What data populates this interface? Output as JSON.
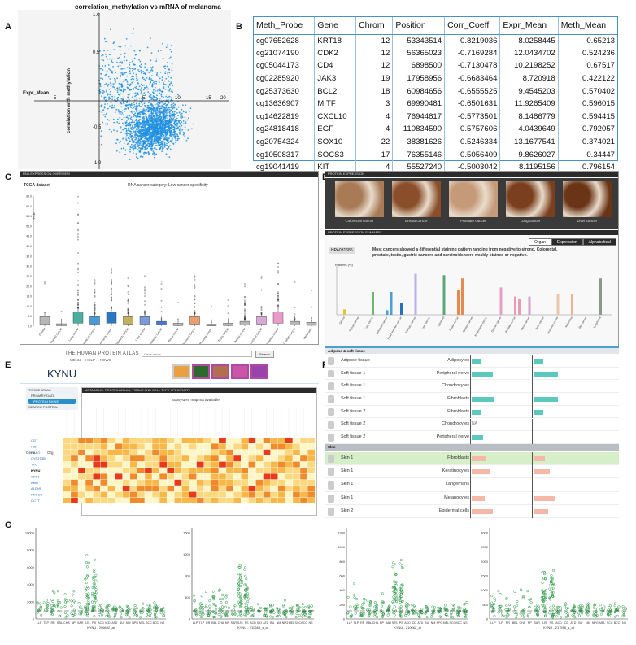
{
  "labels": {
    "A": "A",
    "B": "B",
    "C": "C",
    "D": "D",
    "E": "E",
    "F": "F",
    "G": "G"
  },
  "panelA": {
    "title": "correlation_methylation vs mRNA of melanoma",
    "xlabel": "Expr_Mean",
    "ylabel": "correlation with methylation",
    "xticks": [
      "-5",
      "5",
      "10",
      "15",
      "20"
    ],
    "yticks": [
      "1.0",
      "0.5",
      "-0.5",
      "-1.0"
    ],
    "point_color": "#1e90e0"
  },
  "panelB": {
    "headers": [
      "Meth_Probe",
      "Gene",
      "Chrom",
      "Position",
      "Corr_Coeff",
      "Expr_Mean",
      "Meth_Mean"
    ],
    "rows": [
      [
        "cg07652628",
        "KRT18",
        "12",
        "53343514",
        "-0.8219036",
        "8.0258445",
        "0.65213"
      ],
      [
        "cg21074190",
        "CDK2",
        "12",
        "56365023",
        "-0.7169284",
        "12.0434702",
        "0.524236"
      ],
      [
        "cg05044173",
        "CD4",
        "12",
        "6898500",
        "-0.7130478",
        "10.2198252",
        "0.67517"
      ],
      [
        "cg02285920",
        "JAK3",
        "19",
        "17958956",
        "-0.6683464",
        "8.720918",
        "0.422122"
      ],
      [
        "cg25373630",
        "BCL2",
        "18",
        "60984656",
        "-0.6555525",
        "9.4545203",
        "0.570402"
      ],
      [
        "cg13636907",
        "MITF",
        "3",
        "69990481",
        "-0.6501631",
        "11.9265409",
        "0.596015"
      ],
      [
        "cg14622819",
        "CXCL10",
        "4",
        "76944817",
        "-0.5773501",
        "8.1486779",
        "0.594415"
      ],
      [
        "cg24818418",
        "EGF",
        "4",
        "110834590",
        "-0.5757606",
        "4.0439649",
        "0.792057"
      ],
      [
        "cg20754324",
        "SOX10",
        "22",
        "38381626",
        "-0.5246334",
        "13.1677541",
        "0.374021"
      ],
      [
        "cg10508317",
        "SOCS3",
        "17",
        "76355146",
        "-0.5056409",
        "9.8626027",
        "0.34447"
      ],
      [
        "cg19041419",
        "KIT",
        "4",
        "55527240",
        "-0.5003042",
        "8.1195156",
        "0.796154"
      ]
    ]
  },
  "panelC": {
    "header": "RNA EXPRESSION OVERVIEW",
    "dataset": "TCGA dataset",
    "category": "RNA cancer category: Low cancer specificity",
    "ylabel": "FPKM",
    "yticks": [
      "65.0",
      "60.0",
      "55.0",
      "50.0",
      "45.0",
      "40.0",
      "35.0",
      "30.0",
      "25.0",
      "20.0",
      "15.0",
      "10.0",
      "5.0",
      "0.0"
    ],
    "cancers": [
      "Glioma",
      "Thyroid cancer",
      "Lung cancer",
      "Colorectal cancer",
      "Head and neck cancer",
      "Stomach cancer",
      "Liver cancer",
      "Pancreatic cancer",
      "Renal cancer",
      "Urothelial cancer",
      "Prostate cancer",
      "Testis cancer",
      "Breast cancer",
      "Cervical cancer",
      "Endometrial cancer",
      "Ovarian cancer",
      "Melanoma"
    ]
  },
  "panelD": {
    "header": "PROTEIN EXPRESSION",
    "images": [
      "Colorectal cancer",
      "Breast cancer",
      "Prostate cancer",
      "Lung cancer",
      "Liver cancer"
    ],
    "summary_header": "PROTEIN EXPRESSION SUMMARY",
    "tabs": [
      "Organ",
      "Expression",
      "Alphabetical"
    ],
    "antibody": "HPA031686",
    "summary_text": "Most cancers showed a differential staining pattern ranging from negative to strong. Colorectal, prostate, testis, gastric cancers and carcinoids were weakly stained or negative.",
    "ylabel": "Patients (%)",
    "categories": [
      "Glioma",
      "Thyroid cancer",
      "Lung cancer",
      "Colorectal cancer",
      "Head and neck cancer",
      "Stomach cancer",
      "Liver cancer",
      "Carcinoid",
      "Breast cancer",
      "Cervical cancer",
      "Endometrial cancer",
      "Ovarian cancer",
      "Prostate cancer",
      "Renal cancer",
      "Testis cancer",
      "Urothelial cancer",
      "Melanoma",
      "Skin cancer",
      "Lymphoma"
    ]
  },
  "panelE": {
    "site_title": "THE HUMAN PROTEIN ATLAS",
    "nav": [
      "MENU",
      "HELP",
      "NEWS"
    ],
    "search_placeholder": "Gene name",
    "search_button": "Search",
    "gene": "KYNU",
    "side_items": [
      "TISSUE ATLAS",
      "PRIMARY DATA",
      "PROTEIN SHINE",
      "SEARCH PROTEIN"
    ],
    "heatmap_title": "METABOLIC. PROTEIN ATLAS, TISSUE AND CELL TYPE SPECIFICITY",
    "no_map": "Subsystem map not available",
    "genes": [
      "CGT",
      "HID",
      "HAAO",
      "CYP2T3B",
      "TPO",
      "KYNU",
      "CPS1",
      "KMO",
      "ALDH9",
      "PNGO3",
      "OCTT"
    ],
    "gene_col": "Gene",
    "org_col": "Org"
  },
  "panelF": {
    "section1": "Adipose & soft tissue",
    "section2": "Skin",
    "rows1": [
      {
        "tissue": "Adipose tissue",
        "cell": "Adipocytes"
      },
      {
        "tissue": "Soft tissue 1",
        "cell": "Peripheral nerve"
      },
      {
        "tissue": "Soft tissue 1",
        "cell": "Chondrocytes"
      },
      {
        "tissue": "Soft tissue 1",
        "cell": "Fibroblasts"
      },
      {
        "tissue": "Soft tissue 2",
        "cell": "Fibroblasts"
      },
      {
        "tissue": "Soft tissue 2",
        "cell": "Chondrocytes",
        "note": "NA"
      },
      {
        "tissue": "Soft tissue 2",
        "cell": "Peripheral nerve"
      }
    ],
    "rows2": [
      {
        "tissue": "Skin 1",
        "cell": "Fibroblasts"
      },
      {
        "tissue": "Skin 1",
        "cell": "Keratinocytes"
      },
      {
        "tissue": "Skin 1",
        "cell": "Langerhans"
      },
      {
        "tissue": "Skin 1",
        "cell": "Melanocytes"
      },
      {
        "tissue": "Skin 2",
        "cell": "Epidermal cells"
      }
    ],
    "teal": "#5cc9c0",
    "salmon": "#f4b8a8"
  },
  "panelG": {
    "groups": [
      "LLP",
      "TLP",
      "RR",
      "BBL",
      "CHA",
      "NP",
      "SAR",
      "SJS",
      "PS",
      "ACD",
      "ICD",
      "ATD",
      "BU",
      "NM",
      "NPG",
      "MEL",
      "SCC",
      "BCC",
      "NS"
    ],
    "plots": [
      {
        "xlabel": "KYNU - 206692_at",
        "yticks": [
          "0",
          "2000",
          "4000",
          "6000",
          "8000",
          "10000"
        ]
      },
      {
        "xlabel": "KYNU - 210663_s_at",
        "yticks": [
          "0",
          "400",
          "800",
          "1200",
          "1600"
        ]
      },
      {
        "xlabel": "KYNU - 210662_at",
        "yticks": [
          "0",
          "200",
          "400",
          "600",
          "800",
          "1000",
          "1200"
        ]
      },
      {
        "xlabel": "KYNU - 217596_s_at",
        "yticks": [
          "0",
          "500",
          "1000",
          "1500",
          "2000",
          "2500",
          "3000"
        ]
      }
    ],
    "point_color": "#2e9a4a"
  }
}
